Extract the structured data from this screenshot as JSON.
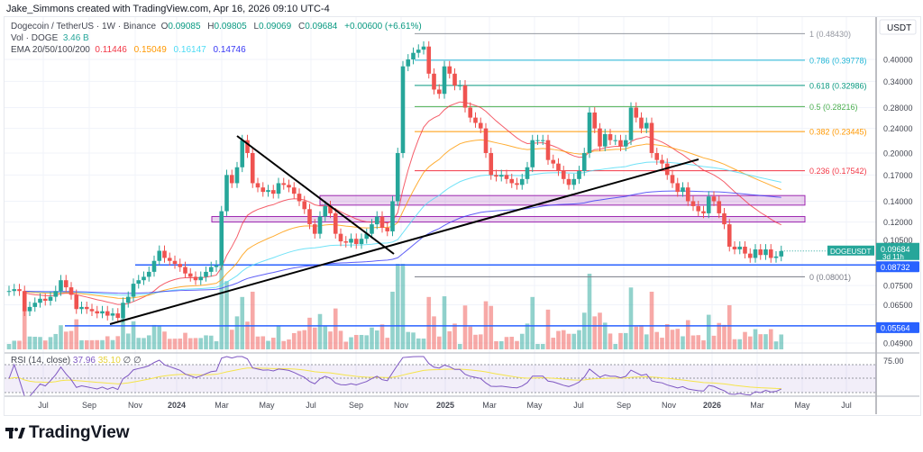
{
  "credit": "Jake_Simmons created with TradingView.com, Apr 16, 2026 09:10 UTC-4",
  "legend": {
    "symbol": "Dogecoin / TetherUS · 1W · Binance",
    "open_label": "O",
    "open": "0.09085",
    "high_label": "H",
    "high": "0.09805",
    "low_label": "L",
    "low": "0.09069",
    "close_label": "C",
    "close": "0.09684",
    "change": "+0.00600 (+6.61%)",
    "vol_label": "Vol · DOGE",
    "vol": "3.46 B",
    "ema_label": "EMA 20/50/100/200",
    "ema": [
      "0.11446",
      "0.15049",
      "0.16147",
      "0.14746"
    ],
    "rsi_label": "RSI (14, close)",
    "rsi": "37.96",
    "rsi_ma": "35.10",
    "rsi_extra": "∅ ∅"
  },
  "colors": {
    "up": "#26a69a",
    "down": "#ef5350",
    "ema": [
      "#f23645",
      "#ff9800",
      "#4ddbf5",
      "#3838f5"
    ],
    "rsi": "#7e57c2",
    "rsi_ma": "#f5e44a",
    "hline": "#2962ff",
    "zone": "#9c27b0"
  },
  "axis": {
    "currency": "USDT",
    "price_ticks": [
      "0.40000",
      "0.34000",
      "0.28000",
      "0.24000",
      "0.20000",
      "0.17000",
      "0.14000",
      "0.12000",
      "0.10500",
      "0.07500",
      "0.06500",
      "0.04900"
    ],
    "rsi_tick": "75.00",
    "time_ticks": [
      "Jul",
      "Sep",
      "Nov",
      "2024",
      "Mar",
      "May",
      "Jul",
      "Sep",
      "Nov",
      "2025",
      "Mar",
      "May",
      "Jul",
      "Sep",
      "Nov",
      "2026",
      "Mar",
      "May",
      "Jul"
    ]
  },
  "badges": {
    "symbol": "DOGEUSDT",
    "price": "0.09684",
    "countdown": "3d 11h",
    "hline1": "0.08732",
    "hline2": "0.05564"
  },
  "fib": [
    {
      "label": "1 (0.48430)",
      "price": 0.4843,
      "color": "#9598a1"
    },
    {
      "label": "0.786 (0.39778)",
      "price": 0.39778,
      "color": "#22b6d6"
    },
    {
      "label": "0.618 (0.32986)",
      "price": 0.32986,
      "color": "#089981"
    },
    {
      "label": "0.5 (0.28216)",
      "price": 0.28216,
      "color": "#4caf50"
    },
    {
      "label": "0.382 (0.23445)",
      "price": 0.23445,
      "color": "#ff9800"
    },
    {
      "label": "0.236 (0.17542)",
      "price": 0.17542,
      "color": "#f23645"
    },
    {
      "label": "0 (0.08001)",
      "price": 0.08001,
      "color": "#787b86"
    }
  ],
  "zones": [
    {
      "top": 0.146,
      "bottom": 0.136
    },
    {
      "top": 0.125,
      "bottom": 0.12
    }
  ],
  "hlines": [
    0.08732,
    0.05564
  ],
  "footer": {
    "brand": "TradingView"
  },
  "chart_data": {
    "type": "candlestick",
    "scale": "log",
    "interval": "1W",
    "closes": [
      0.072,
      0.073,
      0.072,
      0.062,
      0.064,
      0.066,
      0.068,
      0.067,
      0.069,
      0.072,
      0.078,
      0.074,
      0.07,
      0.063,
      0.064,
      0.063,
      0.062,
      0.061,
      0.062,
      0.06,
      0.061,
      0.059,
      0.066,
      0.069,
      0.076,
      0.078,
      0.08,
      0.083,
      0.09,
      0.097,
      0.092,
      0.09,
      0.088,
      0.086,
      0.082,
      0.08,
      0.078,
      0.08,
      0.083,
      0.086,
      0.087,
      0.13,
      0.17,
      0.16,
      0.18,
      0.22,
      0.2,
      0.16,
      0.155,
      0.15,
      0.152,
      0.148,
      0.16,
      0.158,
      0.155,
      0.148,
      0.14,
      0.132,
      0.118,
      0.11,
      0.125,
      0.135,
      0.128,
      0.11,
      0.104,
      0.103,
      0.106,
      0.102,
      0.106,
      0.11,
      0.118,
      0.125,
      0.115,
      0.112,
      0.14,
      0.2,
      0.38,
      0.4,
      0.42,
      0.43,
      0.44,
      0.36,
      0.32,
      0.31,
      0.38,
      0.36,
      0.33,
      0.33,
      0.28,
      0.26,
      0.25,
      0.24,
      0.2,
      0.17,
      0.168,
      0.17,
      0.165,
      0.16,
      0.158,
      0.165,
      0.18,
      0.22,
      0.22,
      0.22,
      0.19,
      0.185,
      0.175,
      0.165,
      0.158,
      0.165,
      0.175,
      0.2,
      0.27,
      0.24,
      0.21,
      0.23,
      0.22,
      0.22,
      0.21,
      0.22,
      0.28,
      0.26,
      0.24,
      0.25,
      0.2,
      0.19,
      0.185,
      0.17,
      0.16,
      0.15,
      0.155,
      0.14,
      0.135,
      0.13,
      0.128,
      0.145,
      0.14,
      0.128,
      0.118,
      0.1,
      0.098,
      0.1,
      0.095,
      0.092,
      0.098,
      0.094,
      0.098,
      0.092,
      0.093,
      0.09684
    ]
  }
}
